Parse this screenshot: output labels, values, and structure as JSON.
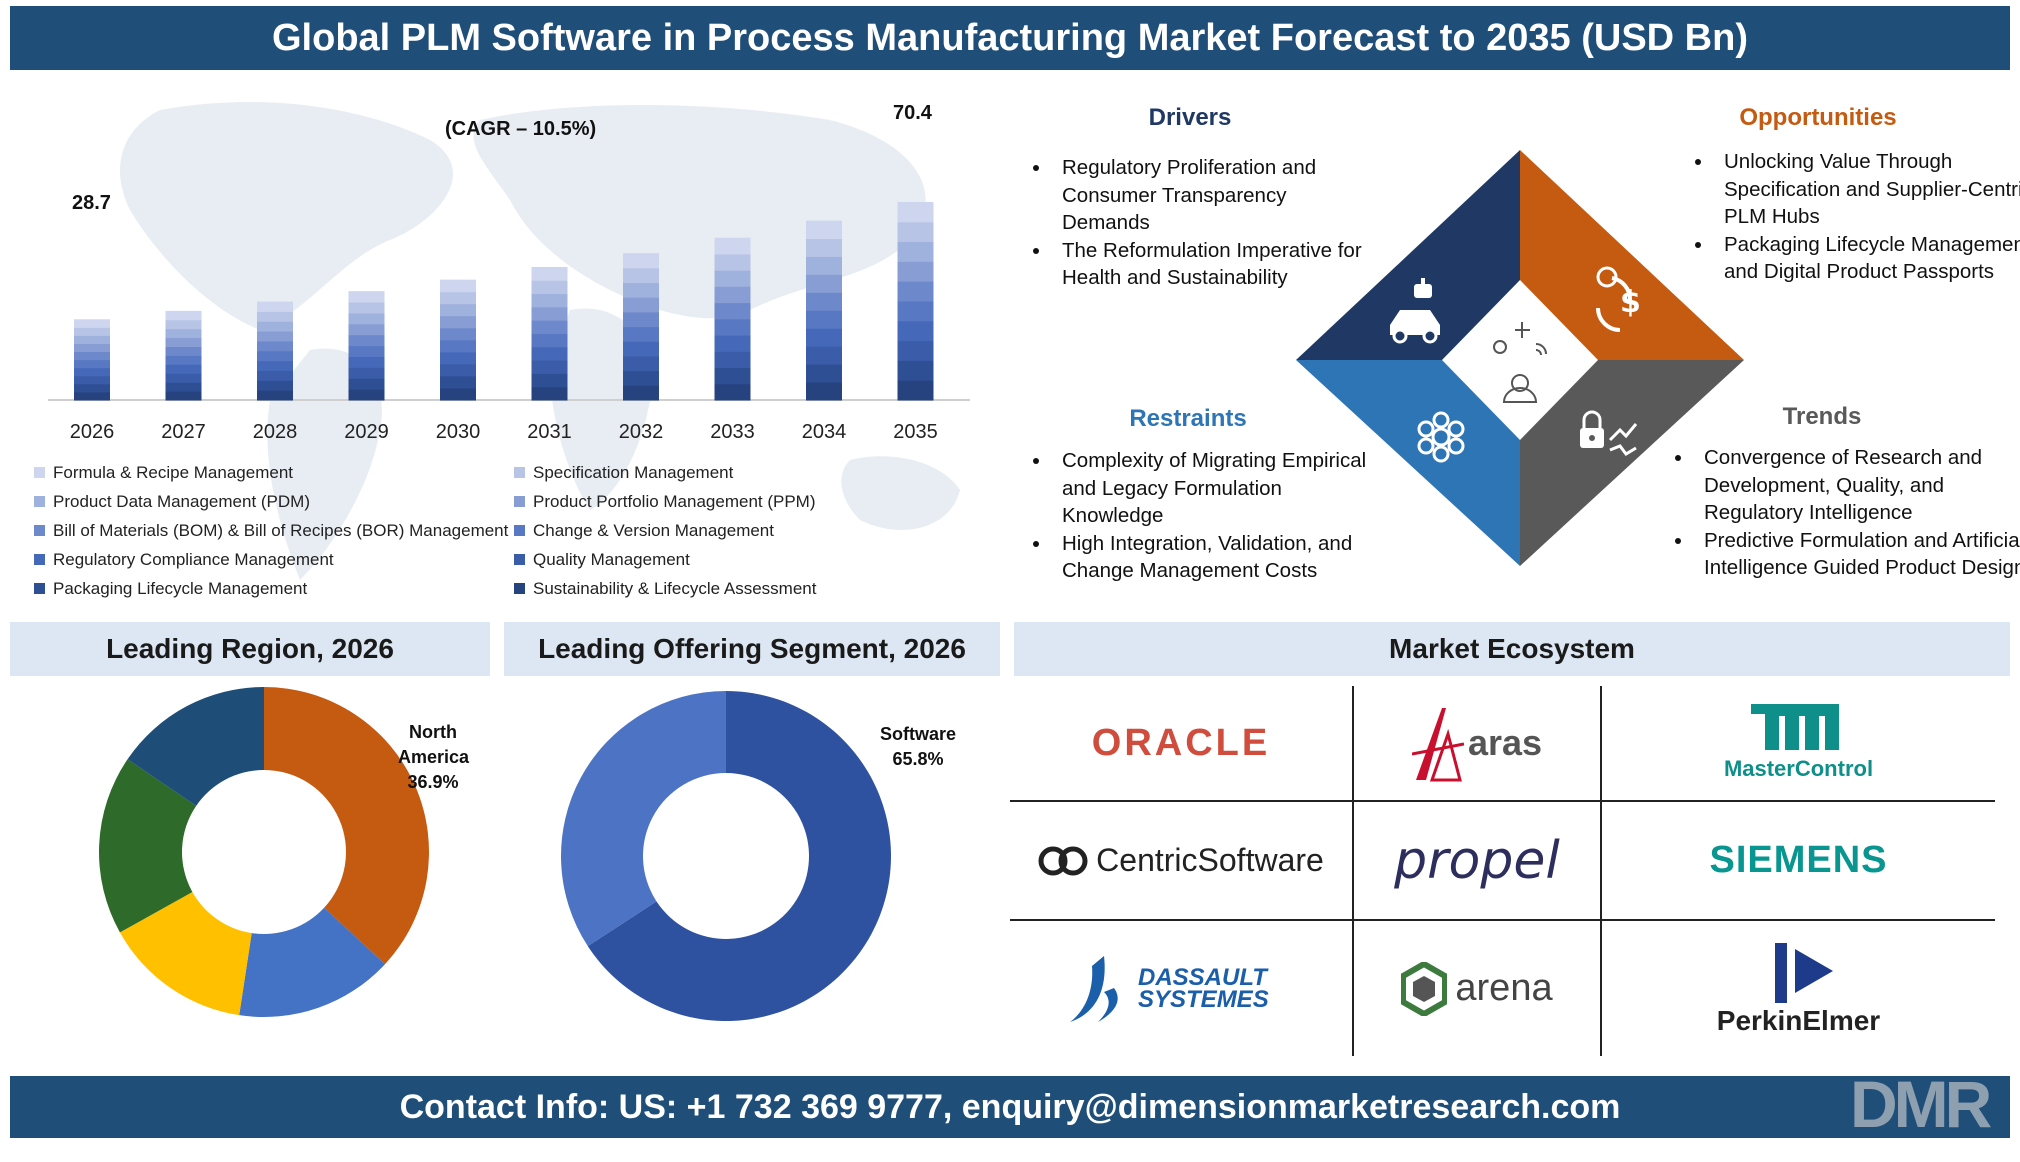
{
  "title": "Global PLM Software in Process Manufacturing Market Forecast to 2035 (USD Bn)",
  "footer": "Contact Info: US: +1 732 369 9777, enquiry@dimensionmarketresearch.com",
  "brand": "DMR",
  "chart_data": [
    {
      "type": "bar",
      "annotation": "(CAGR – 10.5%)",
      "categories": [
        "2026",
        "2027",
        "2028",
        "2029",
        "2030",
        "2031",
        "2032",
        "2033",
        "2034",
        "2035"
      ],
      "values": [
        28.7,
        31.7,
        35.0,
        38.7,
        42.8,
        47.3,
        52.2,
        57.7,
        63.8,
        70.4
      ],
      "labels": {
        "first": "28.7",
        "last": "70.4"
      },
      "ylim": [
        0,
        80
      ],
      "stacked_series": [
        {
          "name": "Formula & Recipe Management",
          "color": "#cdd6ee"
        },
        {
          "name": "Specification Management",
          "color": "#b7c4e6"
        },
        {
          "name": "Product Data Management (PDM)",
          "color": "#9fb1dd"
        },
        {
          "name": "Product Portfolio Management (PPM)",
          "color": "#879dd4"
        },
        {
          "name": "Bill of Materials (BOM) & Bill of Recipes (BOR) Management",
          "color": "#6d88cb"
        },
        {
          "name": "Change & Version Management",
          "color": "#5878c4"
        },
        {
          "name": "Regulatory Compliance Management",
          "color": "#4668b9"
        },
        {
          "name": "Quality Management",
          "color": "#3a5ca9"
        },
        {
          "name": "Packaging Lifecycle Management",
          "color": "#2f4f94"
        },
        {
          "name": "Sustainability & Lifecycle Assessment",
          "color": "#264380"
        }
      ]
    },
    {
      "type": "pie",
      "title": "Leading Region, 2026",
      "label": {
        "name": "North America",
        "value": "36.9%"
      },
      "slices": [
        {
          "value": 36.9,
          "color": "#c55a11"
        },
        {
          "value": 15.5,
          "color": "#4472c4"
        },
        {
          "value": 14.5,
          "color": "#ffc000"
        },
        {
          "value": 17.6,
          "color": "#2e6b2a"
        },
        {
          "value": 15.5,
          "color": "#1e4d78"
        }
      ]
    },
    {
      "type": "pie",
      "title": "Leading Offering Segment, 2026",
      "label": {
        "name": "Software",
        "value": "65.8%"
      },
      "slices": [
        {
          "value": 65.8,
          "color": "#2f52a0"
        },
        {
          "value": 34.2,
          "color": "#4d74c4"
        }
      ]
    }
  ],
  "drivers": {
    "title": "Drivers",
    "color": "#1f3864",
    "items": [
      "Regulatory Proliferation and Consumer Transparency Demands",
      "The Reformulation Imperative for Health and Sustainability"
    ]
  },
  "opportunities": {
    "title": "Opportunities",
    "color": "#c55a11",
    "items": [
      "Unlocking Value Through Specification and Supplier-Centric PLM Hubs",
      "Packaging Lifecycle Management and Digital Product Passports"
    ]
  },
  "restraints": {
    "title": "Restraints",
    "color": "#2e75b6",
    "items": [
      "Complexity of Migrating Empirical and Legacy Formulation Knowledge",
      "High Integration, Validation, and Change Management Costs"
    ]
  },
  "trends": {
    "title": "Trends",
    "color": "#595959",
    "items": [
      "Convergence of Research and Development, Quality, and Regulatory Intelligence",
      "Predictive Formulation and Artificial Intelligence Guided Product Design"
    ]
  },
  "diamond_icons": [
    "car-robot-icon",
    "dollar-cycle-icon",
    "flower-network-icon",
    "lock-chart-icon",
    "person-idea-icon"
  ],
  "ecosystem": {
    "title": "Market Ecosystem",
    "logos": [
      "ORACLE",
      "aras",
      "MasterControl",
      "CentricSoftware",
      "propel",
      "SIEMENS",
      "DASSAULT SYSTEMES",
      "arena",
      "PerkinElmer"
    ]
  }
}
